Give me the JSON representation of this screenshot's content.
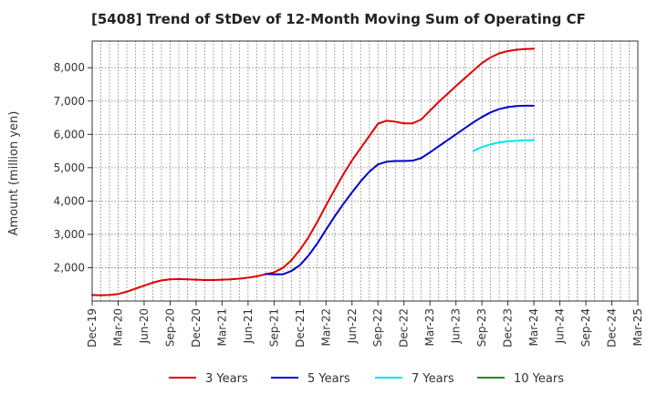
{
  "chart_data": {
    "type": "line",
    "title": "[5408]  Trend of StDev of 12-Month Moving Sum of Operating CF",
    "ylabel": "Amount (million yen)",
    "xlabel": "",
    "ylim": [
      1000,
      8800
    ],
    "yticks": [
      2000,
      3000,
      4000,
      5000,
      6000,
      7000,
      8000
    ],
    "ytick_labels": [
      "2,000",
      "3,000",
      "4,000",
      "5,000",
      "6,000",
      "7,000",
      "8,000"
    ],
    "x_range": [
      "2019-12",
      "2025-03"
    ],
    "xticks": [
      "Dec-19",
      "Mar-20",
      "Jun-20",
      "Sep-20",
      "Dec-20",
      "Mar-21",
      "Jun-21",
      "Sep-21",
      "Dec-21",
      "Mar-22",
      "Jun-22",
      "Sep-22",
      "Dec-22",
      "Mar-23",
      "Jun-23",
      "Sep-23",
      "Dec-23",
      "Mar-24",
      "Jun-24",
      "Sep-24",
      "Dec-24",
      "Mar-25"
    ],
    "grid": true,
    "legend_position": "bottom",
    "series": [
      {
        "name": "3 Years",
        "color": "#e00000",
        "x": [
          "2019-12",
          "2020-01",
          "2020-02",
          "2020-03",
          "2020-04",
          "2020-05",
          "2020-06",
          "2020-07",
          "2020-08",
          "2020-09",
          "2020-10",
          "2020-11",
          "2020-12",
          "2021-01",
          "2021-02",
          "2021-03",
          "2021-04",
          "2021-05",
          "2021-06",
          "2021-07",
          "2021-08",
          "2021-09",
          "2021-10",
          "2021-11",
          "2021-12",
          "2022-01",
          "2022-02",
          "2022-03",
          "2022-04",
          "2022-05",
          "2022-06",
          "2022-07",
          "2022-08",
          "2022-09",
          "2022-10",
          "2022-11",
          "2022-12",
          "2023-01",
          "2023-02",
          "2023-03",
          "2023-04",
          "2023-05",
          "2023-06",
          "2023-07",
          "2023-08",
          "2023-09",
          "2023-10",
          "2023-11",
          "2023-12",
          "2024-01",
          "2024-02",
          "2024-03"
        ],
        "y": [
          1180,
          1170,
          1180,
          1210,
          1280,
          1370,
          1460,
          1550,
          1620,
          1650,
          1660,
          1650,
          1640,
          1630,
          1630,
          1640,
          1650,
          1670,
          1700,
          1740,
          1800,
          1860,
          1990,
          2220,
          2540,
          2920,
          3380,
          3870,
          4340,
          4800,
          5220,
          5590,
          5950,
          6320,
          6410,
          6380,
          6330,
          6330,
          6450,
          6710,
          6970,
          7210,
          7450,
          7680,
          7910,
          8140,
          8310,
          8430,
          8500,
          8540,
          8560,
          8570
        ]
      },
      {
        "name": "5 Years",
        "color": "#0000cc",
        "x": [
          "2021-08",
          "2021-09",
          "2021-10",
          "2021-11",
          "2021-12",
          "2022-01",
          "2022-02",
          "2022-03",
          "2022-04",
          "2022-05",
          "2022-06",
          "2022-07",
          "2022-08",
          "2022-09",
          "2022-10",
          "2022-11",
          "2022-12",
          "2023-01",
          "2023-02",
          "2023-03",
          "2023-04",
          "2023-05",
          "2023-06",
          "2023-07",
          "2023-08",
          "2023-09",
          "2023-10",
          "2023-11",
          "2023-12",
          "2024-01",
          "2024-02",
          "2024-03"
        ],
        "y": [
          1810,
          1800,
          1800,
          1900,
          2080,
          2370,
          2730,
          3140,
          3540,
          3910,
          4260,
          4590,
          4880,
          5100,
          5180,
          5200,
          5200,
          5210,
          5290,
          5460,
          5640,
          5820,
          6000,
          6180,
          6360,
          6520,
          6660,
          6760,
          6820,
          6850,
          6860,
          6860
        ]
      },
      {
        "name": "7 Years",
        "color": "#00e5ee",
        "x": [
          "2023-08",
          "2023-09",
          "2023-10",
          "2023-11",
          "2023-12",
          "2024-01",
          "2024-02",
          "2024-03"
        ],
        "y": [
          5500,
          5620,
          5700,
          5760,
          5790,
          5810,
          5820,
          5830
        ]
      },
      {
        "name": "10 Years",
        "color": "#228b22",
        "x": [],
        "y": []
      }
    ]
  }
}
